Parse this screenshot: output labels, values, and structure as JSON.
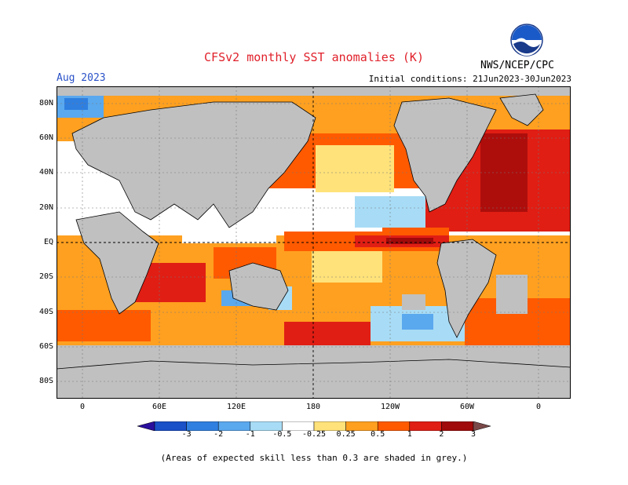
{
  "title": "CFSv2 monthly SST anomalies (K)",
  "valid_month": "Aug 2023",
  "initial_conditions": "Initial conditions: 21Jun2023-30Jun2023",
  "organization": "NWS/NCEP/CPC",
  "logo_text": "NOAA",
  "lat_labels": [
    "80N",
    "60N",
    "40N",
    "20N",
    "EQ",
    "20S",
    "40S",
    "60S",
    "80S"
  ],
  "lon_labels": [
    "0",
    "60E",
    "120E",
    "180",
    "120W",
    "60W",
    "0"
  ],
  "colorbar": {
    "labels": [
      "-3",
      "-2",
      "-1",
      "-0.5",
      "-0.25",
      "0.25",
      "0.5",
      "1",
      "2",
      "3"
    ],
    "colors": [
      "#2a0f9e",
      "#1a50c8",
      "#2f7fe0",
      "#5aa8ee",
      "#a8dcf6",
      "#ffffff",
      "#ffe27a",
      "#ffa020",
      "#ff5a00",
      "#e01e14",
      "#a00a0a",
      "#7a4848"
    ]
  },
  "colors": {
    "land": "#c0c0c0",
    "low_skill": "#c0c0c0",
    "title": "#e0202a",
    "month": "#2a52c8"
  },
  "caption": "(Areas of expected skill less than 0.3 are shaded in grey.)"
}
